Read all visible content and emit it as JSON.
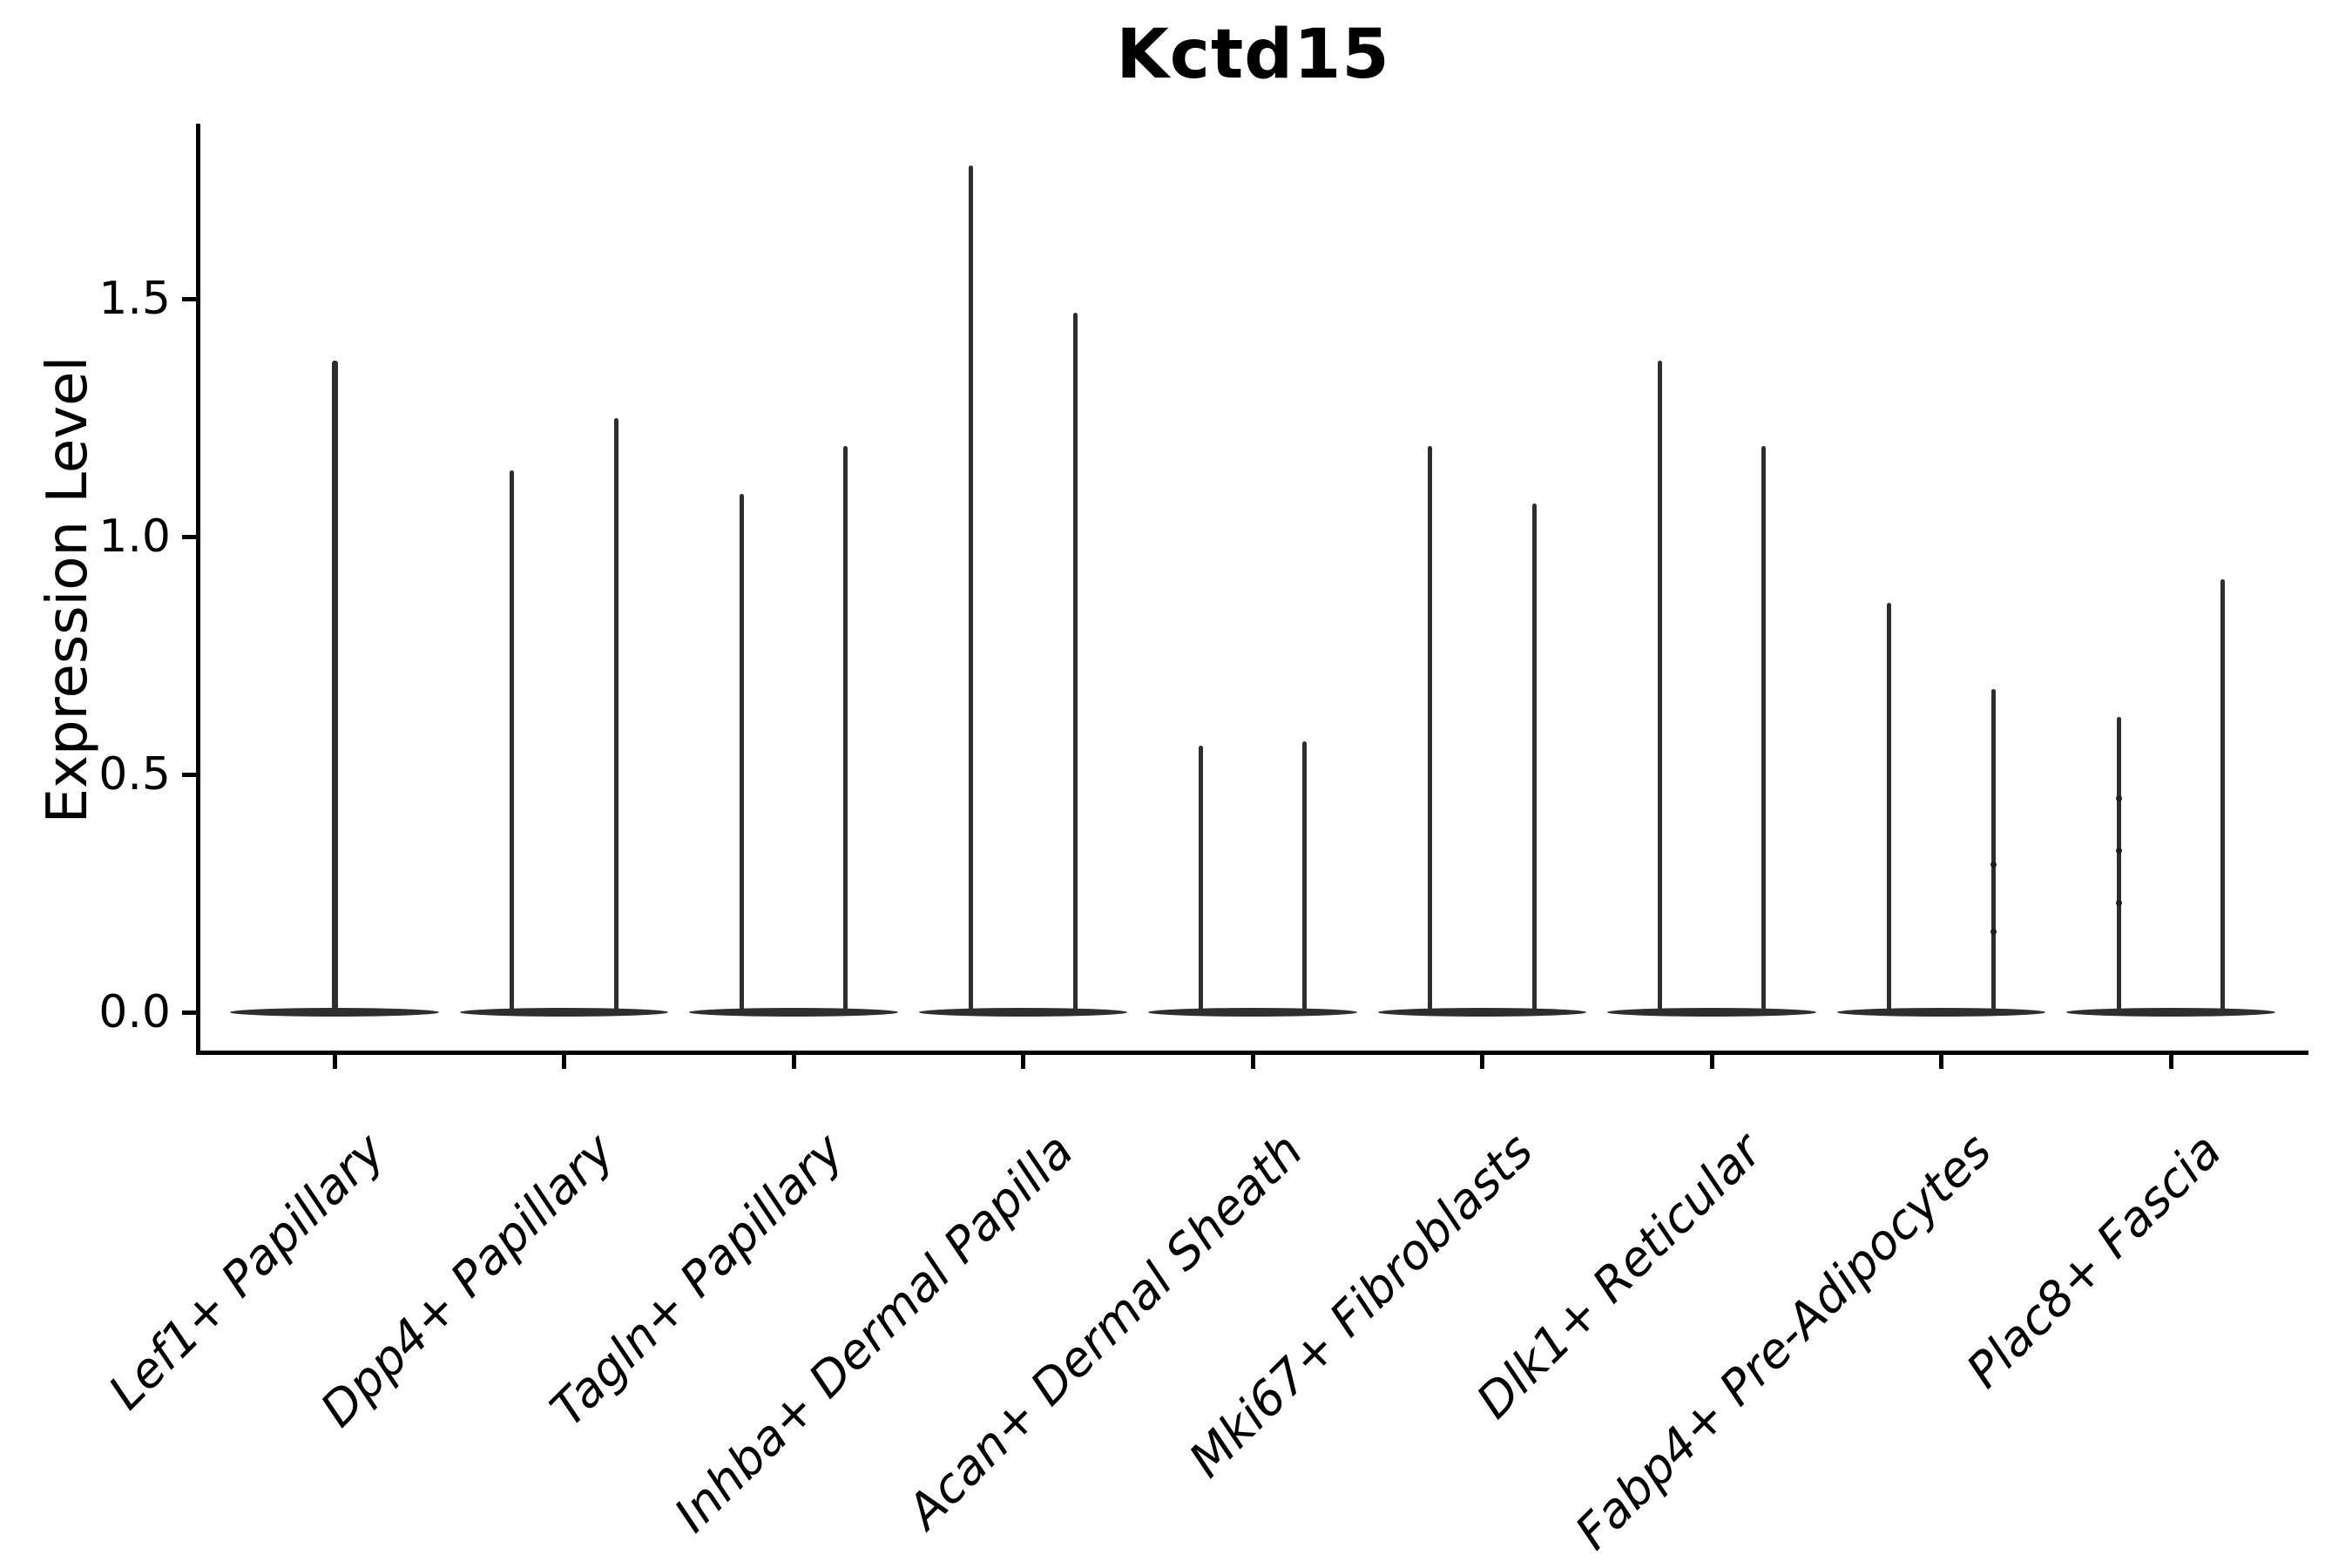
{
  "title": "Kctd15",
  "colors": {
    "violin": "#2e2e2e",
    "axis": "#000000",
    "text": "#000000",
    "background": "#ffffff"
  },
  "chart_data": {
    "type": "violin",
    "title": "Kctd15",
    "xlabel": "",
    "ylabel": "Expression Level",
    "yticks": [
      0.0,
      0.5,
      1.0,
      1.5
    ],
    "ytick_labels": [
      "0.0",
      "0.5",
      "1.0",
      "1.5"
    ],
    "ylim": [
      -0.09,
      1.87
    ],
    "grid": false,
    "legend": "none",
    "baseline_value": 0.0,
    "violin_base_halfwidth": 0.455,
    "categories": [
      "Lef1+ Papillary",
      "Dpp4+ Papillary",
      "Tagln+ Papillary",
      "Inhba+ Dermal Papilla",
      "Acan+ Dermal Sheath",
      "Mki67+ Fibroblasts",
      "Dlk1+ Reticular",
      "Fabp4+ Pre-Adipocytes",
      "Plac8+ Fascia"
    ],
    "violins": [
      {
        "category": "Lef1+ Papillary",
        "peaks": [
          {
            "offset": 0.0,
            "max": 1.37
          }
        ]
      },
      {
        "category": "Dpp4+ Papillary",
        "peaks": [
          {
            "offset": -0.226,
            "max": 1.14
          },
          {
            "offset": 0.226,
            "max": 1.25
          }
        ]
      },
      {
        "category": "Tagln+ Papillary",
        "peaks": [
          {
            "offset": -0.226,
            "max": 1.09
          },
          {
            "offset": 0.226,
            "max": 1.19
          }
        ]
      },
      {
        "category": "Inhba+ Dermal Papilla",
        "peaks": [
          {
            "offset": -0.226,
            "max": 1.78
          },
          {
            "offset": 0.226,
            "max": 1.47
          }
        ]
      },
      {
        "category": "Acan+ Dermal Sheath",
        "peaks": [
          {
            "offset": -0.226,
            "max": 0.56
          },
          {
            "offset": 0.226,
            "max": 0.57
          }
        ]
      },
      {
        "category": "Mki67+ Fibroblasts",
        "peaks": [
          {
            "offset": -0.226,
            "max": 1.19
          },
          {
            "offset": 0.226,
            "max": 1.07
          }
        ]
      },
      {
        "category": "Dlk1+ Reticular",
        "peaks": [
          {
            "offset": -0.226,
            "max": 1.37
          },
          {
            "offset": 0.226,
            "max": 1.19
          }
        ]
      },
      {
        "category": "Fabp4+ Pre-Adipocytes",
        "peaks": [
          {
            "offset": -0.226,
            "max": 0.86
          },
          {
            "offset": 0.226,
            "max": 0.68
          }
        ],
        "points": [
          {
            "offset": 0.226,
            "values": [
              0.31,
              0.17
            ]
          }
        ]
      },
      {
        "category": "Plac8+ Fascia",
        "peaks": [
          {
            "offset": -0.226,
            "max": 0.62
          },
          {
            "offset": 0.226,
            "max": 0.91
          }
        ],
        "points": [
          {
            "offset": -0.226,
            "values": [
              0.45,
              0.34,
              0.23
            ]
          }
        ]
      }
    ]
  }
}
